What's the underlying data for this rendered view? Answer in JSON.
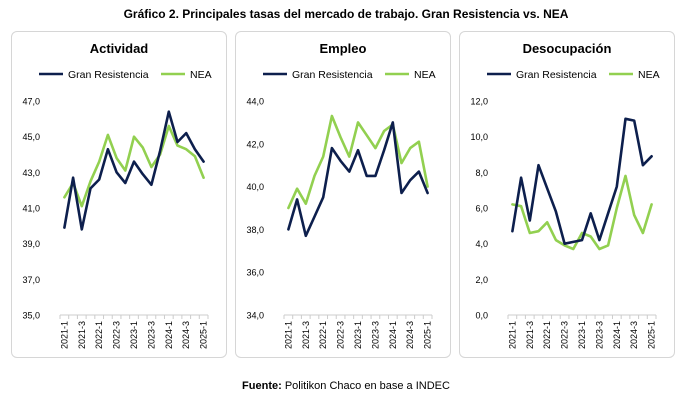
{
  "figure_title": "Gráfico 2. Principales tasas del mercado de trabajo. Gran Resistencia vs. NEA",
  "source": {
    "label": "Fuente:",
    "text": "Politikon Chaco en base a INDEC"
  },
  "colors": {
    "gran_resistencia": "#0d1f4d",
    "nea": "#92d050",
    "axis": "#cccccc"
  },
  "chart_data": [
    {
      "type": "line",
      "title": "Actividad",
      "legend_position": "top",
      "x": [
        "2021-1",
        "2021-2",
        "2021-3",
        "2021-4",
        "2022-1",
        "2022-2",
        "2022-3",
        "2022-4",
        "2023-1",
        "2023-2",
        "2023-3",
        "2023-4",
        "2024-1",
        "2024-2",
        "2024-3",
        "2024-4",
        "2025-1"
      ],
      "x_tick_labels": [
        "2021-1",
        "2021-3",
        "2022-1",
        "2022-3",
        "2023-1",
        "2023-3",
        "2024-1",
        "2024-3",
        "2025-1"
      ],
      "ylim": [
        35,
        47
      ],
      "y_ticks": [
        "35,0",
        "37,0",
        "39,0",
        "41,0",
        "43,0",
        "45,0",
        "47,0"
      ],
      "grid": false,
      "series": [
        {
          "name": "Gran Resistencia",
          "values": [
            39.9,
            42.7,
            39.8,
            42.1,
            42.6,
            44.3,
            43.0,
            42.4,
            43.6,
            42.9,
            42.3,
            44.2,
            46.4,
            44.7,
            45.2,
            44.3,
            43.6
          ]
        },
        {
          "name": "NEA",
          "values": [
            41.6,
            42.4,
            41.1,
            42.5,
            43.6,
            45.1,
            43.8,
            43.1,
            45.0,
            44.4,
            43.3,
            44.0,
            45.6,
            44.5,
            44.3,
            43.9,
            42.7
          ]
        }
      ]
    },
    {
      "type": "line",
      "title": "Empleo",
      "legend_position": "top",
      "x": [
        "2021-1",
        "2021-2",
        "2021-3",
        "2021-4",
        "2022-1",
        "2022-2",
        "2022-3",
        "2022-4",
        "2023-1",
        "2023-2",
        "2023-3",
        "2023-4",
        "2024-1",
        "2024-2",
        "2024-3",
        "2024-4",
        "2025-1"
      ],
      "x_tick_labels": [
        "2021-1",
        "2021-3",
        "2022-1",
        "2022-3",
        "2023-1",
        "2023-3",
        "2024-1",
        "2024-3",
        "2025-1"
      ],
      "ylim": [
        34,
        44
      ],
      "y_ticks": [
        "34,0",
        "36,0",
        "38,0",
        "40,0",
        "42,0",
        "44,0"
      ],
      "grid": false,
      "series": [
        {
          "name": "Gran Resistencia",
          "values": [
            38.0,
            39.4,
            37.7,
            38.6,
            39.5,
            41.8,
            41.2,
            40.7,
            41.7,
            40.5,
            40.5,
            41.7,
            43.0,
            39.7,
            40.3,
            40.7,
            39.7
          ]
        },
        {
          "name": "NEA",
          "values": [
            39.0,
            39.9,
            39.2,
            40.5,
            41.4,
            43.3,
            42.3,
            41.4,
            43.0,
            42.4,
            41.8,
            42.6,
            42.9,
            41.1,
            41.8,
            42.1,
            40.0
          ]
        }
      ]
    },
    {
      "type": "line",
      "title": "Desocupación",
      "legend_position": "top",
      "x": [
        "2021-1",
        "2021-2",
        "2021-3",
        "2021-4",
        "2022-1",
        "2022-2",
        "2022-3",
        "2022-4",
        "2023-1",
        "2023-2",
        "2023-3",
        "2023-4",
        "2024-1",
        "2024-2",
        "2024-3",
        "2024-4",
        "2025-1"
      ],
      "x_tick_labels": [
        "2021-1",
        "2021-3",
        "2022-1",
        "2022-3",
        "2023-1",
        "2023-3",
        "2024-1",
        "2024-3",
        "2025-1"
      ],
      "ylim": [
        0,
        12
      ],
      "y_ticks": [
        "0,0",
        "2,0",
        "4,0",
        "6,0",
        "8,0",
        "10,0",
        "12,0"
      ],
      "grid": false,
      "series": [
        {
          "name": "Gran Resistencia",
          "values": [
            4.7,
            7.7,
            5.3,
            8.4,
            7.1,
            5.8,
            4.0,
            4.1,
            4.2,
            5.7,
            4.2,
            5.7,
            7.2,
            11.0,
            10.9,
            8.4,
            8.9
          ]
        },
        {
          "name": "NEA",
          "values": [
            6.2,
            6.1,
            4.6,
            4.7,
            5.2,
            4.2,
            3.9,
            3.7,
            4.6,
            4.4,
            3.7,
            3.9,
            6.0,
            7.8,
            5.6,
            4.6,
            6.2
          ]
        }
      ]
    }
  ]
}
